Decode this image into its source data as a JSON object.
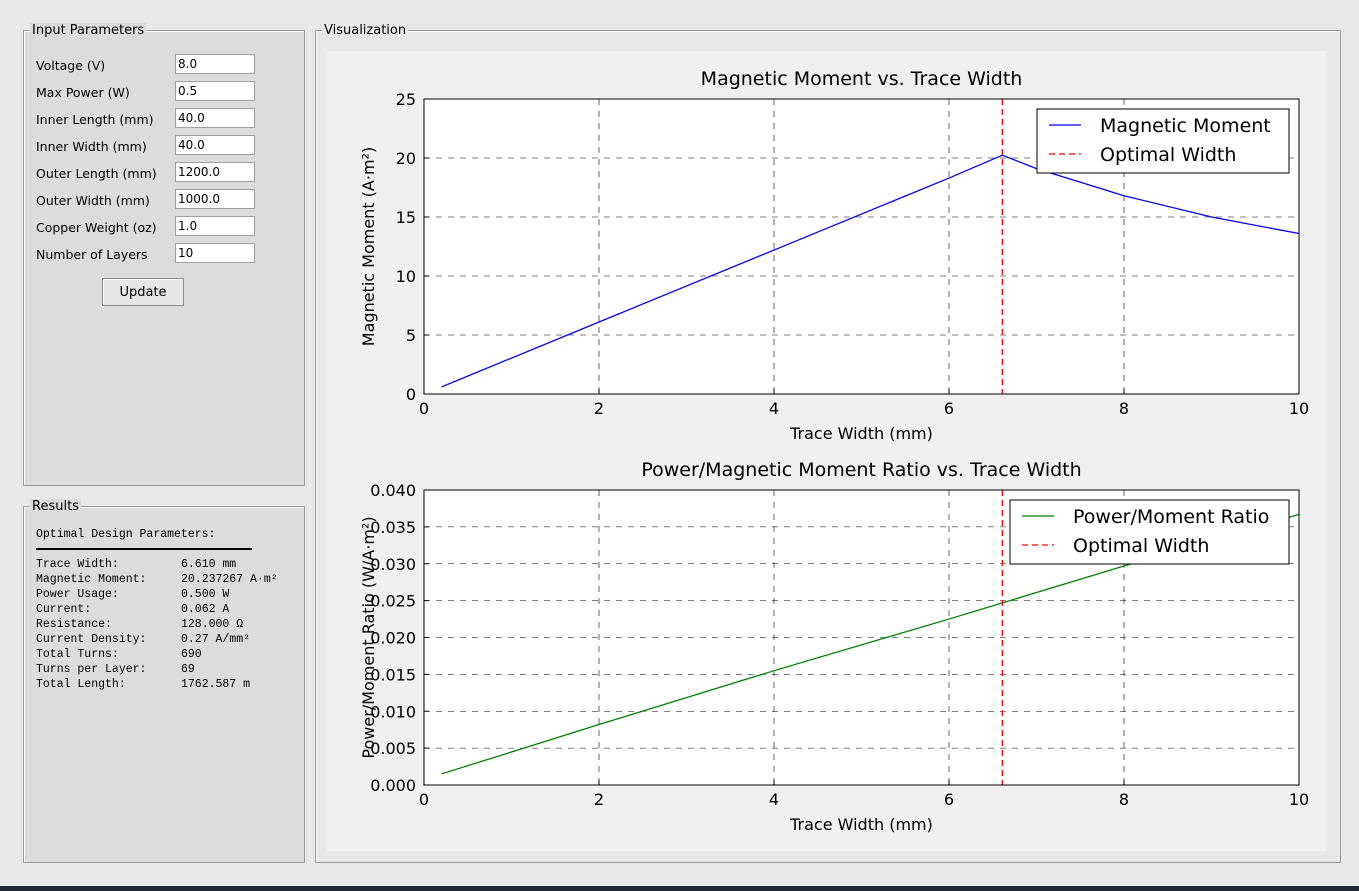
{
  "input_panel": {
    "title": "Input Parameters",
    "fields": [
      {
        "label": "Voltage (V)",
        "value": "8.0"
      },
      {
        "label": "Max Power (W)",
        "value": "0.5"
      },
      {
        "label": "Inner Length (mm)",
        "value": "40.0"
      },
      {
        "label": "Inner Width (mm)",
        "value": "40.0"
      },
      {
        "label": "Outer Length (mm)",
        "value": "1200.0"
      },
      {
        "label": "Outer Width (mm)",
        "value": "1000.0"
      },
      {
        "label": "Copper Weight (oz)",
        "value": "1.0"
      },
      {
        "label": "Number of Layers",
        "value": "10"
      }
    ],
    "update_label": "Update"
  },
  "results_panel": {
    "title": "Results",
    "heading": "Optimal Design Parameters:",
    "rows": [
      {
        "key": "Trace Width:",
        "value": "6.610 mm"
      },
      {
        "key": "Magnetic Moment:",
        "value": "20.237267 A·m²"
      },
      {
        "key": "Power Usage:",
        "value": "0.500 W"
      },
      {
        "key": "Current:",
        "value": "0.062 A"
      },
      {
        "key": "Resistance:",
        "value": "128.000 Ω"
      },
      {
        "key": "Current Density:",
        "value": "0.27 A/mm²"
      },
      {
        "key": "Total Turns:",
        "value": "690"
      },
      {
        "key": "Turns per Layer:",
        "value": "69"
      },
      {
        "key": "Total Length:",
        "value": "1762.587 m"
      }
    ]
  },
  "viz_panel": {
    "title": "Visualization"
  },
  "colors": {
    "moment": "#0000ff",
    "ratio": "#008000",
    "optimal": "#ff0000"
  },
  "chart_data": [
    {
      "type": "line",
      "title": "Magnetic Moment vs. Trace Width",
      "xlabel": "Trace Width (mm)",
      "ylabel": "Magnetic Moment (A·m²)",
      "xlim": [
        0,
        10
      ],
      "ylim": [
        0,
        25
      ],
      "xticks": [
        "0",
        "2",
        "4",
        "6",
        "8",
        "10"
      ],
      "yticks": [
        "0",
        "5",
        "10",
        "15",
        "20",
        "25"
      ],
      "grid": true,
      "legend": "top-right",
      "series": [
        {
          "name": "Magnetic Moment",
          "x": [
            0.2,
            2,
            4,
            6,
            6.61,
            7,
            8,
            9,
            10
          ],
          "y": [
            0.6,
            6.1,
            12.2,
            18.3,
            20.24,
            19.1,
            16.8,
            15.0,
            13.6
          ]
        }
      ],
      "vline": {
        "name": "Optimal Width",
        "x": 6.61
      }
    },
    {
      "type": "line",
      "title": "Power/Magnetic Moment Ratio vs. Trace Width",
      "xlabel": "Trace Width (mm)",
      "ylabel": "Power/Moment Ratio (W/A·m²)",
      "xlim": [
        0,
        10
      ],
      "ylim": [
        0,
        0.04
      ],
      "xticks": [
        "0",
        "2",
        "4",
        "6",
        "8",
        "10"
      ],
      "yticks": [
        "0.000",
        "0.005",
        "0.010",
        "0.015",
        "0.020",
        "0.025",
        "0.030",
        "0.035",
        "0.040"
      ],
      "grid": true,
      "legend": "top-right",
      "series": [
        {
          "name": "Power/Moment Ratio",
          "x": [
            0.2,
            2,
            4,
            6,
            6.61,
            8,
            10
          ],
          "y": [
            0.0015,
            0.0082,
            0.0155,
            0.0225,
            0.0247,
            0.0297,
            0.0367
          ]
        }
      ],
      "vline": {
        "name": "Optimal Width",
        "x": 6.61
      }
    }
  ]
}
